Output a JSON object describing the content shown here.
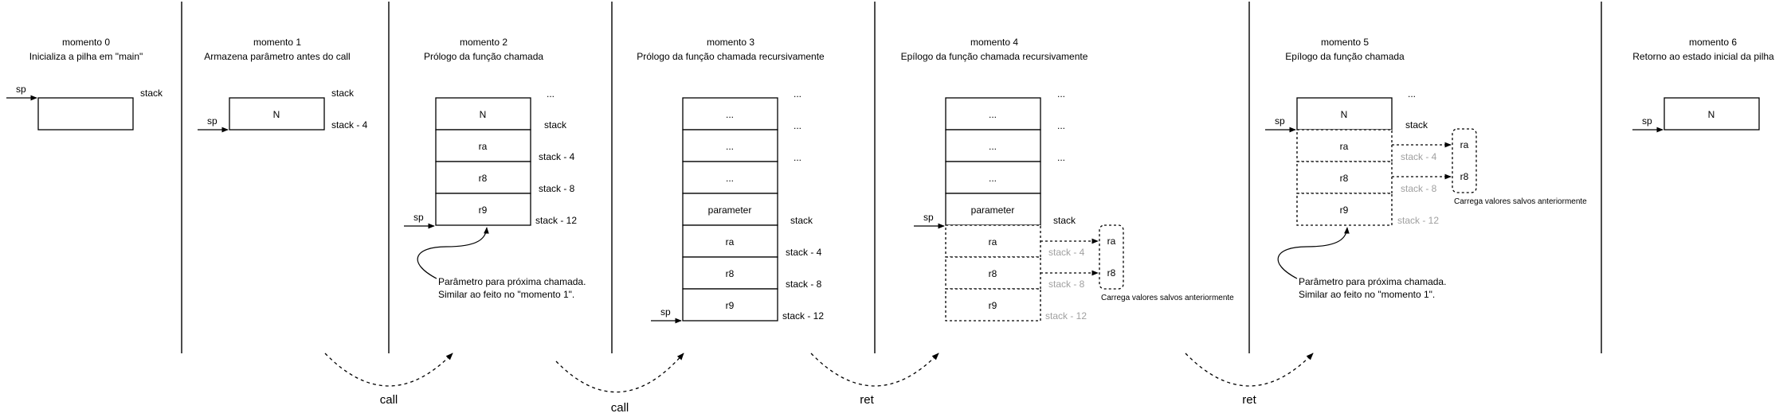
{
  "separators": 6,
  "moments": [
    {
      "title": "momento 0",
      "subtitle": "Inicializa a pilha em \"main\"",
      "sp": "sp",
      "stack": "stack"
    },
    {
      "title": "momento 1",
      "subtitle": "Armazena parâmetro antes do call",
      "sp": "sp",
      "cell": "N",
      "stack": "stack",
      "stack4": "stack - 4"
    },
    {
      "title": "momento 2",
      "subtitle": "Prólogo da função chamada",
      "cells": [
        "N",
        "ra",
        "r8",
        "r9"
      ],
      "dots": "...",
      "labels": [
        "stack",
        "stack - 4",
        "stack - 8",
        "stack - 12"
      ],
      "sp": "sp",
      "note1": "Parâmetro para próxima chamada.",
      "note2": "Similar ao feito no \"momento 1\"."
    },
    {
      "title": "momento 3",
      "subtitle": "Prólogo da função chamada recursivamente",
      "cells": [
        "...",
        "...",
        "...",
        "parameter",
        "ra",
        "r8",
        "r9"
      ],
      "labels": [
        "...",
        "...",
        "...",
        "stack",
        "stack - 4",
        "stack - 8",
        "stack - 12"
      ],
      "sp": "sp"
    },
    {
      "title": "momento 4",
      "subtitle": "Epílogo da função chamada recursivamente",
      "cells": [
        "...",
        "...",
        "...",
        "parameter",
        "ra",
        "r8",
        "r9"
      ],
      "labels": [
        "...",
        "...",
        "...",
        "stack",
        "stack - 4",
        "stack - 8",
        "stack - 12"
      ],
      "sp": "sp",
      "reg1": "ra",
      "reg2": "r8",
      "load_note": "Carrega valores salvos anteriormente"
    },
    {
      "title": "momento 5",
      "subtitle": "Epílogo da função chamada",
      "cells": [
        "N",
        "ra",
        "r8",
        "r9"
      ],
      "dots": "...",
      "labels": [
        "stack",
        "stack - 4",
        "stack - 8",
        "stack - 12"
      ],
      "sp": "sp",
      "reg1": "ra",
      "reg2": "r8",
      "load_note": "Carrega valores salvos anteriormente",
      "note1": "Parâmetro para próxima chamada.",
      "note2": "Similar ao feito no \"momento 1\"."
    },
    {
      "title": "momento 6",
      "subtitle": "Retorno ao estado inicial da pilha",
      "sp": "sp",
      "cell": "N"
    }
  ],
  "transitions": [
    "call",
    "call",
    "ret",
    "ret"
  ]
}
